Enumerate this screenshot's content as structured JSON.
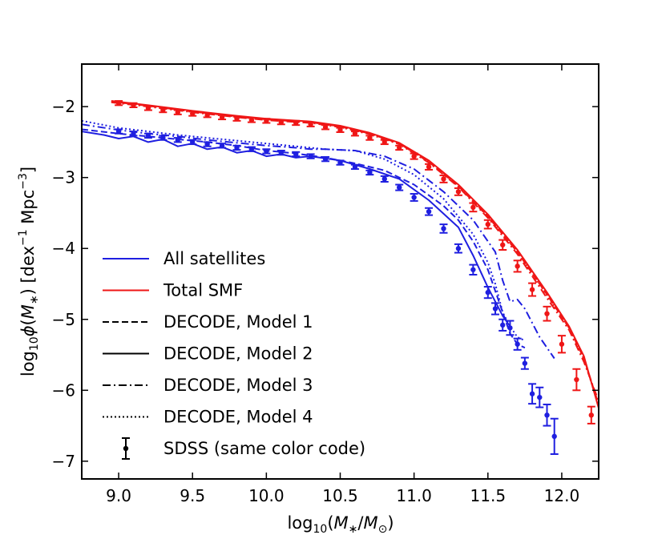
{
  "chart_data": {
    "type": "line",
    "title": "",
    "xlabel": "log10(M*/M☉)",
    "ylabel": "log10 φ(M*)  [dex^-1 Mpc^-3]",
    "xlim": [
      8.75,
      12.25
    ],
    "ylim": [
      -7.25,
      -1.4
    ],
    "xticks": [
      9.0,
      9.5,
      10.0,
      10.5,
      11.0,
      11.5,
      12.0
    ],
    "xtick_labels": [
      "9.0",
      "9.5",
      "10.0",
      "10.5",
      "11.0",
      "11.5",
      "12.0"
    ],
    "yticks": [
      -2,
      -3,
      -4,
      -5,
      -6,
      -7
    ],
    "ytick_labels": [
      "−2",
      "−3",
      "−4",
      "−5",
      "−6",
      "−7"
    ],
    "colors": {
      "satellites": "#1f1fe0",
      "total": "#ef1616"
    },
    "legend": {
      "position": "lower-left",
      "entries": [
        {
          "label": "All satellites",
          "kind": "line",
          "color": "#1f1fe0",
          "dash": "solid"
        },
        {
          "label": "Total SMF",
          "kind": "line",
          "color": "#ef1616",
          "dash": "solid"
        },
        {
          "label": "DECODE, Model 1",
          "kind": "line",
          "color": "#000000",
          "dash": "dashed"
        },
        {
          "label": "DECODE, Model 2",
          "kind": "line",
          "color": "#000000",
          "dash": "solid"
        },
        {
          "label": "DECODE, Model 3",
          "kind": "line",
          "color": "#000000",
          "dash": "dashdot"
        },
        {
          "label": "DECODE, Model 4",
          "kind": "line",
          "color": "#000000",
          "dash": "dotted"
        },
        {
          "label": "SDSS (same color code)",
          "kind": "errorbar",
          "color": "#000000",
          "dash": "solid"
        }
      ]
    },
    "series": [
      {
        "name": "Total SMF, Model 1",
        "group": "total",
        "dash": "dashed",
        "x": [
          8.95,
          9.2,
          9.5,
          9.8,
          10.0,
          10.3,
          10.5,
          10.7,
          10.9,
          11.1,
          11.3,
          11.5,
          11.7,
          11.9,
          12.05,
          12.15,
          12.25
        ],
        "y": [
          -1.93,
          -1.99,
          -2.07,
          -2.14,
          -2.18,
          -2.22,
          -2.28,
          -2.38,
          -2.52,
          -2.78,
          -3.12,
          -3.55,
          -4.05,
          -4.65,
          -5.12,
          -5.55,
          -6.2
        ]
      },
      {
        "name": "Total SMF, Model 2",
        "group": "total",
        "dash": "solid",
        "x": [
          8.95,
          9.2,
          9.5,
          9.8,
          10.0,
          10.3,
          10.5,
          10.7,
          10.9,
          11.1,
          11.3,
          11.5,
          11.7,
          11.9,
          12.05,
          12.15,
          12.25
        ],
        "y": [
          -1.92,
          -1.98,
          -2.06,
          -2.13,
          -2.17,
          -2.21,
          -2.27,
          -2.37,
          -2.51,
          -2.76,
          -3.1,
          -3.52,
          -4.02,
          -4.62,
          -5.1,
          -5.52,
          -6.25
        ]
      },
      {
        "name": "Total SMF, Model 3",
        "group": "total",
        "dash": "dashdot",
        "x": [
          8.95,
          9.2,
          9.5,
          9.8,
          10.0,
          10.3,
          10.5,
          10.7,
          10.9,
          11.1,
          11.3,
          11.5,
          11.7,
          11.9,
          12.05,
          12.15,
          12.25
        ],
        "y": [
          -1.94,
          -2.0,
          -2.08,
          -2.15,
          -2.19,
          -2.23,
          -2.29,
          -2.39,
          -2.53,
          -2.79,
          -3.13,
          -3.57,
          -4.08,
          -4.7,
          -5.15,
          -5.6,
          -6.15
        ]
      },
      {
        "name": "Total SMF, Model 4",
        "group": "total",
        "dash": "dotted",
        "x": [
          8.95,
          9.2,
          9.5,
          9.8,
          10.0,
          10.3,
          10.5,
          10.7,
          10.9,
          11.1,
          11.3,
          11.5,
          11.7,
          11.9,
          12.05,
          12.15,
          12.25
        ],
        "y": [
          -1.93,
          -1.99,
          -2.07,
          -2.14,
          -2.18,
          -2.22,
          -2.28,
          -2.38,
          -2.52,
          -2.77,
          -3.11,
          -3.54,
          -4.05,
          -4.66,
          -5.12,
          -5.56,
          -6.22
        ]
      },
      {
        "name": "All satellites, Model 1",
        "group": "satellites",
        "dash": "dashed",
        "x": [
          8.75,
          9.0,
          9.2,
          9.4,
          9.6,
          9.8,
          10.0,
          10.2,
          10.4,
          10.6,
          10.8,
          11.0,
          11.2,
          11.3,
          11.4,
          11.5,
          11.6,
          11.65,
          11.7,
          11.75
        ],
        "y": [
          -2.32,
          -2.38,
          -2.42,
          -2.46,
          -2.5,
          -2.55,
          -2.62,
          -2.66,
          -2.72,
          -2.8,
          -2.9,
          -3.1,
          -3.4,
          -3.6,
          -3.9,
          -4.3,
          -4.9,
          -5.2,
          -5.35,
          -5.4
        ]
      },
      {
        "name": "All satellites, Model 2",
        "group": "satellites",
        "dash": "solid",
        "x": [
          8.75,
          8.9,
          9.0,
          9.1,
          9.2,
          9.3,
          9.4,
          9.5,
          9.6,
          9.7,
          9.8,
          9.9,
          10.0,
          10.1,
          10.2,
          10.3,
          10.5,
          10.7,
          10.9,
          11.1,
          11.3,
          11.4,
          11.5,
          11.55,
          11.6,
          11.65
        ],
        "y": [
          -2.35,
          -2.4,
          -2.45,
          -2.42,
          -2.5,
          -2.46,
          -2.56,
          -2.52,
          -2.6,
          -2.57,
          -2.65,
          -2.62,
          -2.7,
          -2.67,
          -2.72,
          -2.7,
          -2.76,
          -2.88,
          -3.02,
          -3.32,
          -3.7,
          -4.1,
          -4.55,
          -4.75,
          -4.95,
          -5.1
        ]
      },
      {
        "name": "All satellites, Model 3",
        "group": "satellites",
        "dash": "dashdot",
        "x": [
          8.75,
          9.0,
          9.2,
          9.4,
          9.6,
          9.8,
          10.0,
          10.2,
          10.3,
          10.4,
          10.6,
          10.8,
          11.0,
          11.2,
          11.4,
          11.55,
          11.6,
          11.65,
          11.7,
          11.75,
          11.85,
          11.95
        ],
        "y": [
          -2.25,
          -2.33,
          -2.38,
          -2.42,
          -2.47,
          -2.51,
          -2.55,
          -2.58,
          -2.6,
          -2.6,
          -2.62,
          -2.7,
          -2.88,
          -3.2,
          -3.6,
          -4.05,
          -4.45,
          -4.75,
          -4.72,
          -4.85,
          -5.25,
          -5.55
        ]
      },
      {
        "name": "All satellites, Model 4",
        "group": "satellites",
        "dash": "dotted",
        "x": [
          8.75,
          9.0,
          9.2,
          9.4,
          9.6,
          9.8,
          10.0,
          10.2,
          10.4,
          10.6,
          10.8,
          11.0,
          11.2,
          11.4,
          11.5,
          11.55,
          11.6,
          11.65,
          11.7,
          11.75
        ],
        "y": [
          -2.2,
          -2.3,
          -2.35,
          -2.4,
          -2.44,
          -2.48,
          -2.52,
          -2.56,
          -2.6,
          -2.62,
          -2.74,
          -2.96,
          -3.3,
          -3.8,
          -4.2,
          -4.5,
          -4.9,
          -5.1,
          -5.25,
          -5.3
        ]
      }
    ],
    "observations": [
      {
        "name": "SDSS total",
        "group": "total",
        "x": [
          9.0,
          9.1,
          9.2,
          9.3,
          9.4,
          9.5,
          9.6,
          9.7,
          9.8,
          9.9,
          10.0,
          10.1,
          10.2,
          10.3,
          10.4,
          10.5,
          10.6,
          10.7,
          10.8,
          10.9,
          11.0,
          11.1,
          11.2,
          11.3,
          11.4,
          11.5,
          11.6,
          11.7,
          11.8,
          11.9,
          12.0,
          12.1,
          12.2
        ],
        "y": [
          -1.95,
          -1.98,
          -2.02,
          -2.05,
          -2.08,
          -2.1,
          -2.12,
          -2.15,
          -2.17,
          -2.19,
          -2.2,
          -2.22,
          -2.23,
          -2.25,
          -2.29,
          -2.33,
          -2.38,
          -2.44,
          -2.5,
          -2.58,
          -2.7,
          -2.85,
          -3.02,
          -3.2,
          -3.42,
          -3.66,
          -3.95,
          -4.25,
          -4.58,
          -4.92,
          -5.35,
          -5.85,
          -6.35
        ],
        "err": [
          0.03,
          0.03,
          0.03,
          0.03,
          0.03,
          0.03,
          0.03,
          0.03,
          0.03,
          0.03,
          0.03,
          0.03,
          0.03,
          0.03,
          0.03,
          0.03,
          0.03,
          0.03,
          0.03,
          0.03,
          0.04,
          0.04,
          0.05,
          0.05,
          0.06,
          0.06,
          0.07,
          0.08,
          0.09,
          0.1,
          0.12,
          0.15,
          0.12
        ]
      },
      {
        "name": "SDSS satellites",
        "group": "satellites",
        "x": [
          9.0,
          9.1,
          9.2,
          9.3,
          9.4,
          9.5,
          9.6,
          9.7,
          9.8,
          9.9,
          10.0,
          10.1,
          10.2,
          10.3,
          10.4,
          10.5,
          10.6,
          10.7,
          10.8,
          10.9,
          11.0,
          11.1,
          11.2,
          11.3,
          11.4,
          11.5,
          11.55,
          11.6,
          11.65,
          11.7,
          11.75,
          11.8,
          11.85,
          11.9,
          11.95
        ],
        "y": [
          -2.35,
          -2.38,
          -2.41,
          -2.44,
          -2.47,
          -2.5,
          -2.53,
          -2.55,
          -2.58,
          -2.6,
          -2.63,
          -2.65,
          -2.67,
          -2.7,
          -2.74,
          -2.79,
          -2.85,
          -2.93,
          -3.02,
          -3.14,
          -3.28,
          -3.48,
          -3.72,
          -4.0,
          -4.3,
          -4.62,
          -4.85,
          -5.08,
          -5.12,
          -5.35,
          -5.62,
          -6.05,
          -6.1,
          -6.35,
          -6.65
        ],
        "err": [
          0.03,
          0.03,
          0.03,
          0.03,
          0.03,
          0.03,
          0.03,
          0.03,
          0.03,
          0.03,
          0.03,
          0.03,
          0.03,
          0.03,
          0.03,
          0.03,
          0.03,
          0.03,
          0.04,
          0.04,
          0.05,
          0.05,
          0.06,
          0.06,
          0.07,
          0.08,
          0.08,
          0.08,
          0.1,
          0.08,
          0.08,
          0.14,
          0.14,
          0.15,
          0.25
        ]
      }
    ]
  }
}
